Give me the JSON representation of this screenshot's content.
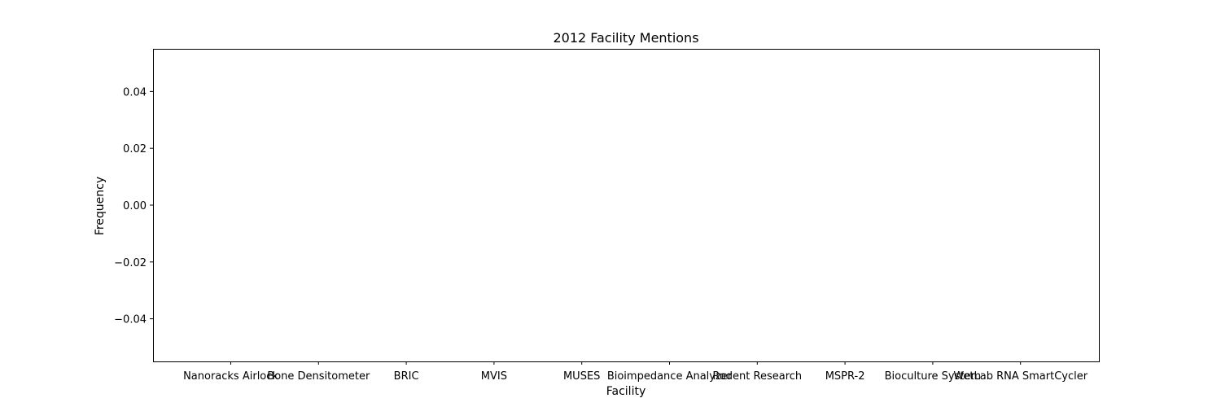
{
  "chart_data": {
    "type": "bar",
    "title": "2012 Facility Mentions",
    "xlabel": "Facility",
    "ylabel": "Frequency",
    "categories": [
      "Nanoracks Airlock",
      "Bone Densitometer",
      "BRIC",
      "MVIS",
      "MUSES",
      "Bioimpedance Analyzer",
      "Rodent Research",
      "MSPR-2",
      "Bioculture System",
      "WetLab RNA SmartCycler"
    ],
    "values": [
      0,
      0,
      0,
      0,
      0,
      0,
      0,
      0,
      0,
      0
    ],
    "ylim": [
      -0.055,
      0.055
    ],
    "yticks": [
      0.04,
      0.02,
      0.0,
      -0.02,
      -0.04
    ],
    "ytick_labels": [
      "0.04",
      "0.02",
      "0.00",
      "−0.02",
      "−0.04"
    ],
    "grid": false,
    "bar_color": "#1f77b4"
  }
}
